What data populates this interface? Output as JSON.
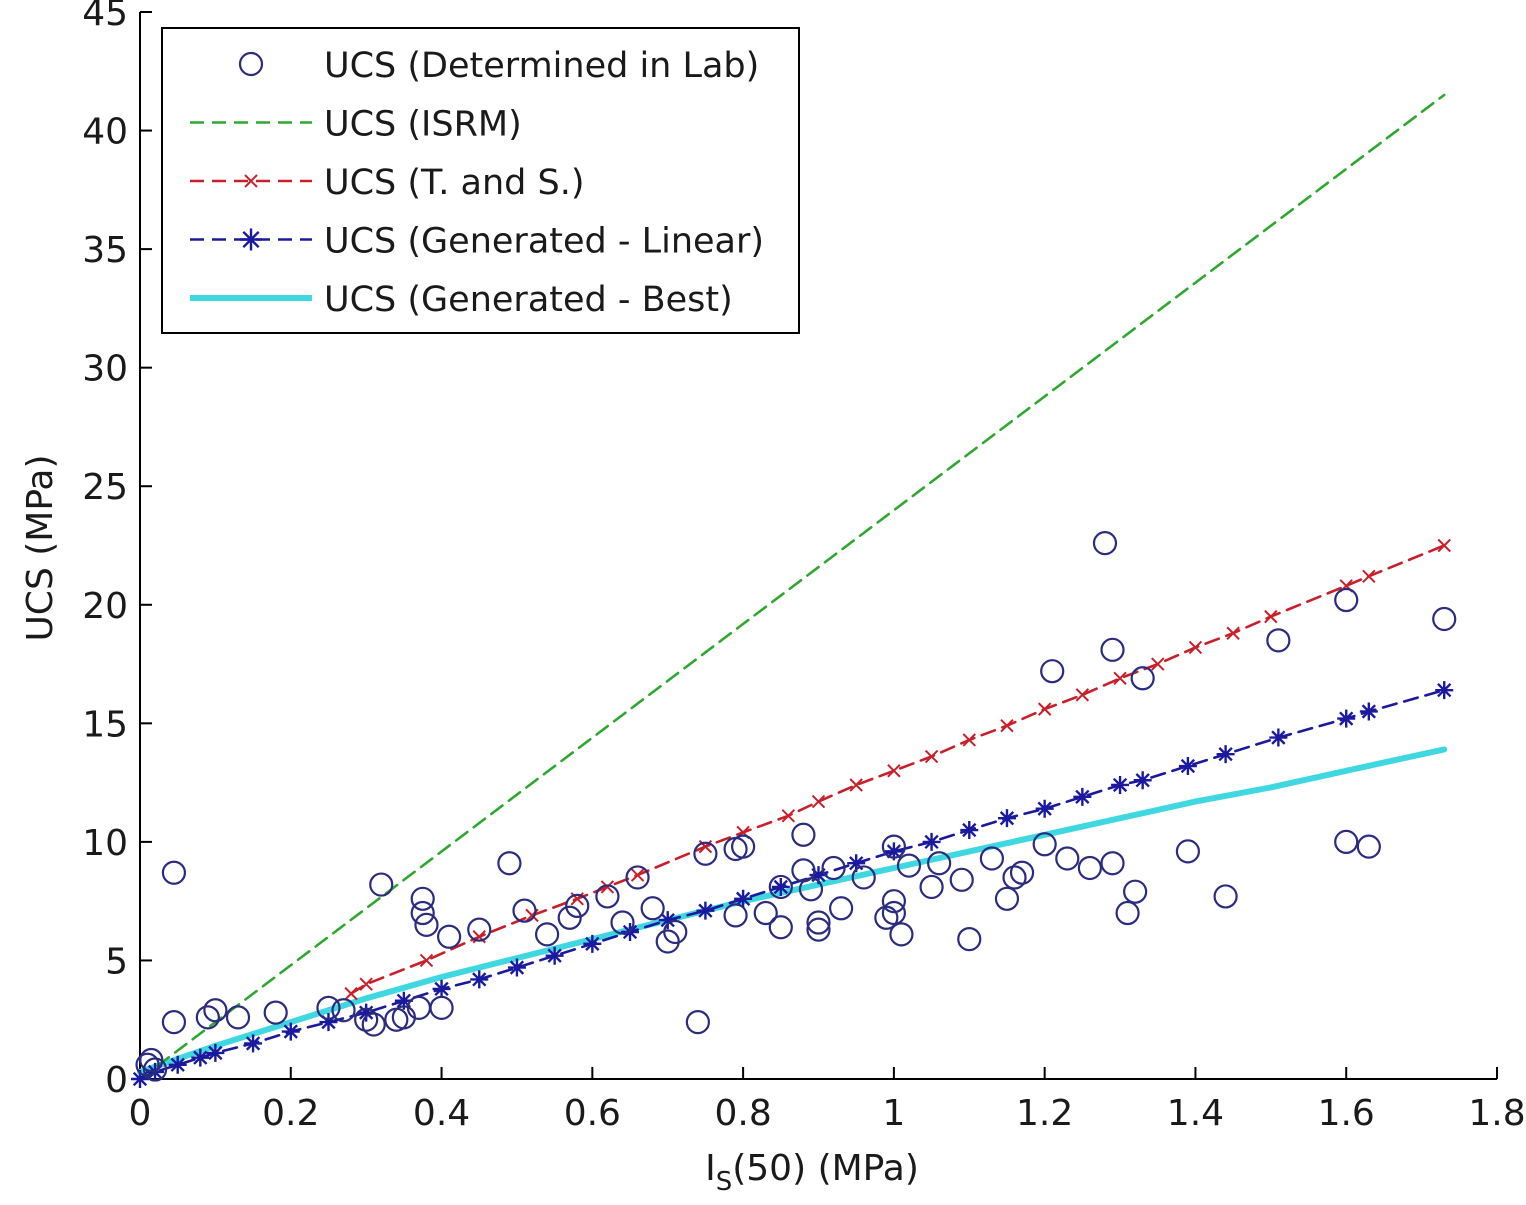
{
  "chart_data": {
    "type": "scatter",
    "xlabel_main": "I",
    "xlabel_sub": "S",
    "xlabel_rest": "(50) (MPa)",
    "ylabel": "UCS (MPa)",
    "xlim": [
      0,
      1.8
    ],
    "ylim": [
      0,
      45
    ],
    "xticks": [
      0,
      0.2,
      0.4,
      0.6,
      0.8,
      1,
      1.2,
      1.4,
      1.6,
      1.8
    ],
    "xtick_labels": [
      "0",
      "0.2",
      "0.4",
      "0.6",
      "0.8",
      "1",
      "1.2",
      "1.4",
      "1.6",
      "1.8"
    ],
    "yticks": [
      0,
      5,
      10,
      15,
      20,
      25,
      30,
      35,
      40,
      45
    ],
    "ytick_labels": [
      "0",
      "5",
      "10",
      "15",
      "20",
      "25",
      "30",
      "35",
      "40",
      "45"
    ],
    "grid": false,
    "legend_position": "top-left",
    "series": [
      {
        "name": "UCS (Determined in Lab)",
        "kind": "markers",
        "marker": "circle",
        "color": "#2b2b80",
        "points": [
          [
            0.01,
            0.6
          ],
          [
            0.015,
            0.8
          ],
          [
            0.02,
            0.4
          ],
          [
            0.045,
            8.7
          ],
          [
            0.045,
            2.4
          ],
          [
            0.09,
            2.6
          ],
          [
            0.1,
            2.9
          ],
          [
            0.13,
            2.6
          ],
          [
            0.18,
            2.8
          ],
          [
            0.25,
            3.0
          ],
          [
            0.27,
            2.9
          ],
          [
            0.3,
            2.5
          ],
          [
            0.31,
            2.3
          ],
          [
            0.32,
            8.2
          ],
          [
            0.34,
            2.5
          ],
          [
            0.35,
            2.6
          ],
          [
            0.37,
            3.0
          ],
          [
            0.375,
            7.6
          ],
          [
            0.375,
            7.0
          ],
          [
            0.38,
            6.5
          ],
          [
            0.4,
            3.0
          ],
          [
            0.41,
            6.0
          ],
          [
            0.45,
            6.3
          ],
          [
            0.49,
            9.1
          ],
          [
            0.51,
            7.1
          ],
          [
            0.54,
            6.1
          ],
          [
            0.57,
            6.8
          ],
          [
            0.58,
            7.3
          ],
          [
            0.62,
            7.7
          ],
          [
            0.64,
            6.6
          ],
          [
            0.66,
            8.5
          ],
          [
            0.68,
            7.2
          ],
          [
            0.7,
            5.8
          ],
          [
            0.71,
            6.2
          ],
          [
            0.74,
            2.4
          ],
          [
            0.75,
            9.5
          ],
          [
            0.79,
            9.7
          ],
          [
            0.79,
            6.9
          ],
          [
            0.8,
            9.8
          ],
          [
            0.83,
            7.0
          ],
          [
            0.85,
            8.1
          ],
          [
            0.85,
            6.4
          ],
          [
            0.88,
            10.3
          ],
          [
            0.88,
            8.8
          ],
          [
            0.89,
            8.0
          ],
          [
            0.9,
            6.6
          ],
          [
            0.9,
            6.3
          ],
          [
            0.92,
            8.9
          ],
          [
            0.93,
            7.2
          ],
          [
            0.96,
            8.5
          ],
          [
            0.99,
            6.8
          ],
          [
            1.0,
            7.5
          ],
          [
            1.0,
            9.8
          ],
          [
            1.0,
            7.0
          ],
          [
            1.01,
            6.1
          ],
          [
            1.02,
            9.0
          ],
          [
            1.05,
            8.1
          ],
          [
            1.06,
            9.1
          ],
          [
            1.09,
            8.4
          ],
          [
            1.1,
            5.9
          ],
          [
            1.13,
            9.3
          ],
          [
            1.15,
            7.6
          ],
          [
            1.16,
            8.5
          ],
          [
            1.17,
            8.7
          ],
          [
            1.2,
            9.9
          ],
          [
            1.21,
            17.2
          ],
          [
            1.23,
            9.3
          ],
          [
            1.26,
            8.9
          ],
          [
            1.28,
            22.6
          ],
          [
            1.29,
            18.1
          ],
          [
            1.29,
            9.1
          ],
          [
            1.31,
            7.0
          ],
          [
            1.32,
            7.9
          ],
          [
            1.33,
            16.9
          ],
          [
            1.39,
            9.6
          ],
          [
            1.44,
            7.7
          ],
          [
            1.51,
            18.5
          ],
          [
            1.6,
            20.2
          ],
          [
            1.6,
            10.0
          ],
          [
            1.63,
            9.8
          ],
          [
            1.73,
            19.4
          ]
        ]
      },
      {
        "name": "UCS (ISRM)",
        "kind": "line",
        "dash": "dashed",
        "color": "#2fa82f",
        "points": [
          [
            0,
            0
          ],
          [
            1.73,
            41.5
          ]
        ]
      },
      {
        "name": "UCS (T. and S.)",
        "kind": "line-markers",
        "marker": "x",
        "dash": "dashed",
        "color": "#c8202a",
        "points": [
          [
            0.28,
            3.6
          ],
          [
            0.3,
            4.0
          ],
          [
            0.38,
            5.0
          ],
          [
            0.45,
            6.0
          ],
          [
            0.52,
            6.9
          ],
          [
            0.58,
            7.6
          ],
          [
            0.62,
            8.1
          ],
          [
            0.66,
            8.6
          ],
          [
            0.75,
            9.8
          ],
          [
            0.8,
            10.4
          ],
          [
            0.86,
            11.1
          ],
          [
            0.9,
            11.7
          ],
          [
            0.95,
            12.4
          ],
          [
            1.0,
            13.0
          ],
          [
            1.05,
            13.6
          ],
          [
            1.1,
            14.3
          ],
          [
            1.15,
            14.9
          ],
          [
            1.2,
            15.6
          ],
          [
            1.25,
            16.2
          ],
          [
            1.3,
            16.9
          ],
          [
            1.35,
            17.5
          ],
          [
            1.4,
            18.2
          ],
          [
            1.45,
            18.8
          ],
          [
            1.5,
            19.5
          ],
          [
            1.6,
            20.8
          ],
          [
            1.63,
            21.2
          ],
          [
            1.73,
            22.5
          ]
        ]
      },
      {
        "name": "UCS (Generated - Linear)",
        "kind": "line-markers",
        "marker": "star",
        "dash": "dashed",
        "color": "#1a1aa0",
        "points": [
          [
            0.0,
            0.0
          ],
          [
            0.02,
            0.3
          ],
          [
            0.05,
            0.6
          ],
          [
            0.08,
            0.9
          ],
          [
            0.1,
            1.1
          ],
          [
            0.15,
            1.5
          ],
          [
            0.2,
            2.0
          ],
          [
            0.25,
            2.4
          ],
          [
            0.3,
            2.8
          ],
          [
            0.35,
            3.3
          ],
          [
            0.4,
            3.8
          ],
          [
            0.45,
            4.2
          ],
          [
            0.5,
            4.7
          ],
          [
            0.55,
            5.2
          ],
          [
            0.6,
            5.7
          ],
          [
            0.65,
            6.2
          ],
          [
            0.7,
            6.7
          ],
          [
            0.75,
            7.1
          ],
          [
            0.8,
            7.6
          ],
          [
            0.85,
            8.1
          ],
          [
            0.9,
            8.6
          ],
          [
            0.95,
            9.1
          ],
          [
            1.0,
            9.6
          ],
          [
            1.05,
            10.0
          ],
          [
            1.1,
            10.5
          ],
          [
            1.15,
            11.0
          ],
          [
            1.2,
            11.4
          ],
          [
            1.25,
            11.9
          ],
          [
            1.3,
            12.4
          ],
          [
            1.33,
            12.6
          ],
          [
            1.39,
            13.2
          ],
          [
            1.44,
            13.7
          ],
          [
            1.51,
            14.4
          ],
          [
            1.6,
            15.2
          ],
          [
            1.63,
            15.5
          ],
          [
            1.73,
            16.4
          ]
        ]
      },
      {
        "name": "UCS (Generated - Best)",
        "kind": "line",
        "dash": "solid",
        "color": "#3fd8e0",
        "points": [
          [
            0.0,
            0.3
          ],
          [
            0.1,
            1.4
          ],
          [
            0.2,
            2.4
          ],
          [
            0.3,
            3.4
          ],
          [
            0.4,
            4.3
          ],
          [
            0.5,
            5.1
          ],
          [
            0.6,
            5.9
          ],
          [
            0.7,
            6.7
          ],
          [
            0.8,
            7.5
          ],
          [
            0.9,
            8.2
          ],
          [
            1.0,
            8.9
          ],
          [
            1.1,
            9.6
          ],
          [
            1.2,
            10.3
          ],
          [
            1.3,
            11.0
          ],
          [
            1.4,
            11.7
          ],
          [
            1.5,
            12.3
          ],
          [
            1.6,
            13.0
          ],
          [
            1.73,
            13.9
          ]
        ]
      }
    ]
  }
}
